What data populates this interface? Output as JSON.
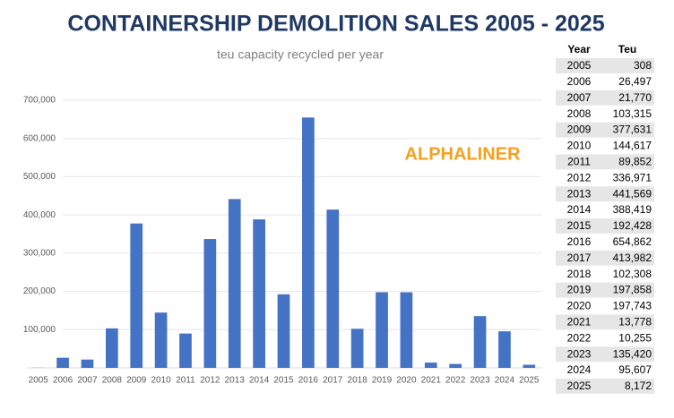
{
  "title": "CONTAINERSHIP DEMOLITION SALES 2005 - 2025",
  "watermark": "ALPHALINER",
  "chart_data": {
    "type": "bar",
    "subtitle": "teu capacity recycled per year",
    "categories": [
      "2005",
      "2006",
      "2007",
      "2008",
      "2009",
      "2010",
      "2011",
      "2012",
      "2013",
      "2014",
      "2015",
      "2016",
      "2017",
      "2018",
      "2019",
      "2020",
      "2021",
      "2022",
      "2023",
      "2024",
      "2025"
    ],
    "values": [
      308,
      26497,
      21770,
      103315,
      377631,
      144617,
      89852,
      336971,
      441569,
      388419,
      192428,
      654862,
      413982,
      102308,
      197858,
      197743,
      13778,
      10255,
      135420,
      95607,
      8172
    ],
    "color": "#4472c4",
    "ylim": [
      0,
      700000
    ],
    "yticks": [
      {
        "value": 100000,
        "label": "100,000"
      },
      {
        "value": 200000,
        "label": "200,000"
      },
      {
        "value": 300000,
        "label": "300,000"
      },
      {
        "value": 400000,
        "label": "400,000"
      },
      {
        "value": 500000,
        "label": "500,000"
      },
      {
        "value": 600000,
        "label": "600,000"
      },
      {
        "value": 700000,
        "label": "700,000"
      }
    ],
    "grid": true
  },
  "table": {
    "columns": [
      "Year",
      "Teu"
    ],
    "rows": [
      [
        "2005",
        "308"
      ],
      [
        "2006",
        "26,497"
      ],
      [
        "2007",
        "21,770"
      ],
      [
        "2008",
        "103,315"
      ],
      [
        "2009",
        "377,631"
      ],
      [
        "2010",
        "144,617"
      ],
      [
        "2011",
        "89,852"
      ],
      [
        "2012",
        "336,971"
      ],
      [
        "2013",
        "441,569"
      ],
      [
        "2014",
        "388,419"
      ],
      [
        "2015",
        "192,428"
      ],
      [
        "2016",
        "654,862"
      ],
      [
        "2017",
        "413,982"
      ],
      [
        "2018",
        "102,308"
      ],
      [
        "2019",
        "197,858"
      ],
      [
        "2020",
        "197,743"
      ],
      [
        "2021",
        "13,778"
      ],
      [
        "2022",
        "10,255"
      ],
      [
        "2023",
        "135,420"
      ],
      [
        "2024",
        "95,607"
      ],
      [
        "2025",
        "8,172"
      ]
    ]
  }
}
